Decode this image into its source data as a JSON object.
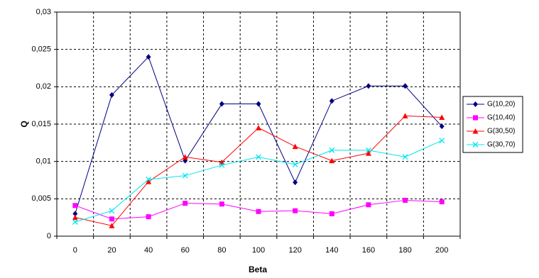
{
  "chart_data": {
    "type": "line",
    "categories": [
      "0",
      "20",
      "40",
      "60",
      "80",
      "100",
      "120",
      "140",
      "160",
      "180",
      "200"
    ],
    "x_label": "Beta",
    "y_label": "Q",
    "ylim": [
      0,
      0.03
    ],
    "yticks": [
      0,
      {
        "value": 0.005,
        "label": "0,005"
      },
      {
        "value": 0.01,
        "label": "0,01"
      },
      {
        "value": 0.015,
        "label": "0,015"
      },
      {
        "value": 0.02,
        "label": "0,02"
      },
      {
        "value": 0.025,
        "label": "0,025"
      },
      {
        "value": 0.03,
        "label": "0,03"
      }
    ],
    "grid": true,
    "legend": "right",
    "series": [
      {
        "name": "G(10,20)",
        "color": "#000080",
        "marker": "diamond",
        "values": [
          0.003,
          0.0189,
          0.024,
          0.0101,
          0.0177,
          0.0177,
          0.0072,
          0.0181,
          0.0201,
          0.0201,
          0.0147
        ]
      },
      {
        "name": "G(10,40)",
        "color": "#ff00ff",
        "marker": "square",
        "values": [
          0.0041,
          0.0023,
          0.0026,
          0.0044,
          0.0043,
          0.0033,
          0.0034,
          0.003,
          0.0042,
          0.0048,
          0.0046
        ]
      },
      {
        "name": "G(30,50)",
        "color": "#ff0000",
        "marker": "triangle",
        "values": [
          0.0025,
          0.0014,
          0.0073,
          0.0106,
          0.0099,
          0.0145,
          0.012,
          0.0101,
          0.0111,
          0.0161,
          0.0159
        ]
      },
      {
        "name": "G(30,70)",
        "color": "#00e5ee",
        "marker": "x",
        "values": [
          0.0019,
          0.0034,
          0.0076,
          0.0081,
          0.0095,
          0.0106,
          0.0096,
          0.0115,
          0.0115,
          0.0106,
          0.0128
        ]
      }
    ]
  }
}
